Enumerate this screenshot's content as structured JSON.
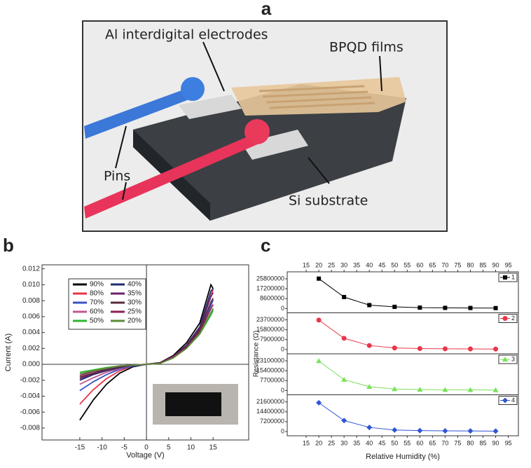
{
  "diagram": {
    "panel_label": "a",
    "labels": [
      "Al interdigital electrodes",
      "BPQD films",
      "Pins",
      "Si substrate"
    ]
  },
  "chart_data": [
    {
      "panel_label": "b",
      "type": "line",
      "xlabel": "Voltage (V)",
      "ylabel": "Current (A)",
      "x": [
        -15,
        -12,
        -9,
        -6,
        -3,
        0,
        3,
        6,
        9,
        12,
        14.5,
        15
      ],
      "xlim": [
        -23.5,
        23
      ],
      "ylim": [
        -0.0095,
        0.0125
      ],
      "xticks": [
        -15,
        -10,
        -5,
        0,
        5,
        10,
        15
      ],
      "yticks": [
        -0.008,
        -0.006,
        -0.004,
        -0.002,
        {
          "value": 0,
          "label": "0.000"
        },
        0.002,
        0.004,
        0.006,
        0.008,
        {
          "value": 0.01,
          "label": "0.010"
        },
        0.012
      ],
      "series": [
        {
          "name": "90%",
          "color": "#000000",
          "values": [
            -0.007,
            -0.0045,
            -0.0025,
            -0.0011,
            -0.0003,
            0,
            0.0002,
            0.0011,
            0.0027,
            0.0052,
            0.01,
            0.0095
          ]
        },
        {
          "name": "80%",
          "color": "#e8354a",
          "values": [
            -0.005,
            -0.0032,
            -0.0018,
            -0.0008,
            -0.0002,
            0,
            0.0002,
            0.001,
            0.0024,
            0.0047,
            0.0086,
            0.0094
          ]
        },
        {
          "name": "70%",
          "color": "#3a52c4",
          "values": [
            -0.0033,
            -0.0022,
            -0.0013,
            -0.0006,
            -0.0002,
            0,
            0.0002,
            0.001,
            0.0022,
            0.0043,
            0.0074,
            0.0081
          ]
        },
        {
          "name": "60%",
          "color": "#c0588c",
          "values": [
            -0.0025,
            -0.0017,
            -0.001,
            -0.0005,
            -0.0001,
            0,
            0.0002,
            0.0009,
            0.0021,
            0.004,
            0.0064,
            0.007
          ]
        },
        {
          "name": "50%",
          "color": "#2db62d",
          "values": [
            -0.001,
            -0.0007,
            -0.0004,
            -0.0002,
            -0.0001,
            0,
            0.0001,
            0.0008,
            0.002,
            0.0038,
            0.0062,
            0.0068
          ]
        },
        {
          "name": "40%",
          "color": "#1f2e6e",
          "values": [
            -0.002,
            -0.0013,
            -0.0008,
            -0.0004,
            -0.0001,
            0,
            0.0002,
            0.001,
            0.0024,
            0.0047,
            0.0092,
            0.0095
          ]
        },
        {
          "name": "35%",
          "color": "#6b1f6b",
          "values": [
            -0.0018,
            -0.0012,
            -0.0007,
            -0.0003,
            -0.0001,
            0,
            0.0002,
            0.001,
            0.0023,
            0.0045,
            0.0085,
            0.009
          ]
        },
        {
          "name": "30%",
          "color": "#5a2a3a",
          "values": [
            -0.0016,
            -0.0011,
            -0.0006,
            -0.0003,
            -0.0001,
            0,
            0.0002,
            0.0009,
            0.0022,
            0.0043,
            0.0078,
            0.0083
          ]
        },
        {
          "name": "25%",
          "color": "#8b2255",
          "values": [
            -0.0014,
            -0.0009,
            -0.0005,
            -0.0002,
            -0.0001,
            0,
            0.0001,
            0.0009,
            0.0021,
            0.0041,
            0.007,
            0.0075
          ]
        },
        {
          "name": "20%",
          "color": "#5e8a3a",
          "values": [
            -0.0012,
            -0.0008,
            -0.0005,
            -0.0002,
            -0.0001,
            0,
            0.0001,
            0.0008,
            0.002,
            0.0039,
            0.0065,
            0.007
          ]
        }
      ]
    },
    {
      "panel_label": "c",
      "type": "line",
      "xlabel": "Relative Humidity (%)",
      "ylabel": "Resistance (Ω)",
      "x": [
        20,
        30,
        40,
        50,
        60,
        70,
        80,
        90
      ],
      "xlim": [
        7.5,
        99
      ],
      "xticks": [
        15,
        20,
        25,
        30,
        35,
        40,
        45,
        50,
        55,
        60,
        65,
        70,
        75,
        80,
        85,
        90,
        95
      ],
      "panels": [
        {
          "ylim": [
            -3700000,
            31900000
          ],
          "yticks": [
            0,
            8600000,
            17200000,
            25800000
          ],
          "series": [
            {
              "name": "1",
              "color": "#000000",
              "marker": "square",
              "values": [
                26000000,
                10000000,
                3000000,
                1500000,
                800000,
                600000,
                500000,
                400000
              ]
            }
          ]
        },
        {
          "ylim": [
            -3400000,
            29300000
          ],
          "yticks": [
            0,
            7900000,
            15800000,
            23700000
          ],
          "series": [
            {
              "name": "2",
              "color": "#e8354a",
              "marker": "circle",
              "values": [
                23500000,
                9000000,
                3200000,
                1300000,
                800000,
                600000,
                500000,
                400000
              ]
            }
          ]
        },
        {
          "ylim": [
            -3300000,
            28600000
          ],
          "yticks": [
            0,
            7700000,
            15400000,
            23100000
          ],
          "series": [
            {
              "name": "3",
              "color": "#7be05a",
              "marker": "triangle",
              "values": [
                23000000,
                8500000,
                3000000,
                1200000,
                800000,
                600000,
                500000,
                400000
              ]
            }
          ]
        },
        {
          "ylim": [
            -3100000,
            26800000
          ],
          "yticks": [
            0,
            7200000,
            14400000,
            21600000
          ],
          "series": [
            {
              "name": "4",
              "color": "#2f55d4",
              "marker": "diamond",
              "values": [
                21000000,
                8000000,
                3000000,
                1100000,
                700000,
                500000,
                400000,
                300000
              ]
            }
          ]
        }
      ]
    }
  ]
}
